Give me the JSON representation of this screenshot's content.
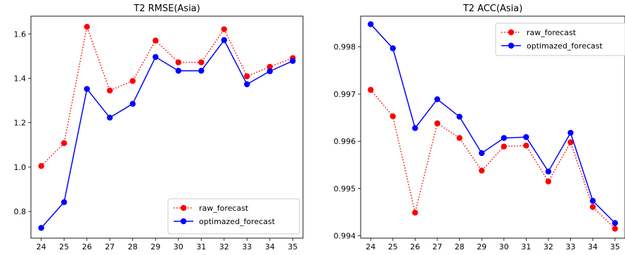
{
  "chart_data": [
    {
      "type": "line",
      "title": "T2 RMSE(Asia)",
      "xlabel": "",
      "ylabel": "",
      "x": [
        24,
        25,
        26,
        27,
        28,
        29,
        30,
        31,
        32,
        33,
        34,
        35
      ],
      "xticks": [
        "24",
        "25",
        "26",
        "27",
        "28",
        "29",
        "30",
        "31",
        "32",
        "33",
        "34",
        "35"
      ],
      "yticks": [
        "0.8",
        "1.0",
        "1.2",
        "1.4",
        "1.6"
      ],
      "ylim": [
        0.68,
        1.68
      ],
      "grid": false,
      "legend_position": "lower-right",
      "series": [
        {
          "name": "raw_forecast",
          "color": "#ff0000",
          "style": "dotted",
          "values": [
            1.005,
            1.108,
            1.632,
            1.345,
            1.388,
            1.57,
            1.472,
            1.472,
            1.621,
            1.409,
            1.452,
            1.491
          ]
        },
        {
          "name": "optimazed_forecast",
          "color": "#0000ff",
          "style": "solid",
          "values": [
            0.726,
            0.842,
            1.352,
            1.223,
            1.285,
            1.496,
            1.434,
            1.434,
            1.572,
            1.373,
            1.432,
            1.478
          ]
        }
      ]
    },
    {
      "type": "line",
      "title": "T2 ACC(Asia)",
      "xlabel": "",
      "ylabel": "",
      "x": [
        24,
        25,
        26,
        27,
        28,
        29,
        30,
        31,
        32,
        33,
        34,
        35
      ],
      "xticks": [
        "24",
        "25",
        "26",
        "27",
        "28",
        "29",
        "30",
        "31",
        "32",
        "33",
        "34",
        "35"
      ],
      "yticks": [
        "0.994",
        "0.995",
        "0.996",
        "0.997",
        "0.998"
      ],
      "ylim": [
        0.99395,
        0.99865
      ],
      "grid": false,
      "legend_position": "upper-right",
      "series": [
        {
          "name": "raw_forecast",
          "color": "#ff0000",
          "style": "dotted",
          "values": [
            0.99709,
            0.99653,
            0.99449,
            0.99638,
            0.99607,
            0.99538,
            0.99589,
            0.99591,
            0.99515,
            0.99598,
            0.99461,
            0.99415
          ]
        },
        {
          "name": "optimazed_forecast",
          "color": "#0000ff",
          "style": "solid",
          "values": [
            0.99848,
            0.99797,
            0.99628,
            0.99689,
            0.99652,
            0.99575,
            0.99607,
            0.99609,
            0.99536,
            0.99618,
            0.99474,
            0.99427
          ]
        }
      ]
    }
  ]
}
